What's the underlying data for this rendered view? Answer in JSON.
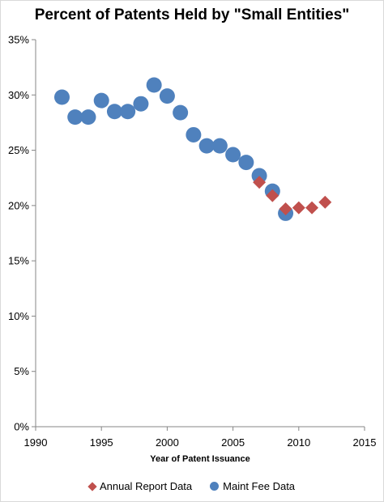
{
  "chart_data": {
    "type": "scatter",
    "title": "Percent of Patents Held by \"Small Entities\"",
    "xlabel": "Year of Patent Issuance",
    "ylabel": "",
    "xlim": [
      1990,
      2015
    ],
    "ylim": [
      0,
      35
    ],
    "x_ticks": [
      "1990",
      "1995",
      "2000",
      "2005",
      "2010",
      "2015"
    ],
    "y_ticks": [
      "0%",
      "5%",
      "10%",
      "15%",
      "20%",
      "25%",
      "30%",
      "35%"
    ],
    "grid": false,
    "legend_position": "bottom",
    "series": [
      {
        "name": "Annual Report Data",
        "marker": "diamond",
        "color": "#C0504D",
        "x": [
          2007,
          2008,
          2009,
          2010,
          2011,
          2012
        ],
        "y": [
          22.1,
          20.9,
          19.7,
          19.8,
          19.8,
          20.3
        ]
      },
      {
        "name": "Maint Fee Data",
        "marker": "circle",
        "color": "#4F81BD",
        "x": [
          1992,
          1993,
          1994,
          1995,
          1996,
          1997,
          1998,
          1999,
          2000,
          2001,
          2002,
          2003,
          2004,
          2005,
          2006,
          2007,
          2008,
          2009
        ],
        "y": [
          29.8,
          28.0,
          28.0,
          29.5,
          28.5,
          28.5,
          29.2,
          30.9,
          29.9,
          28.4,
          26.4,
          25.4,
          25.4,
          24.6,
          23.9,
          22.7,
          21.3,
          19.3
        ]
      }
    ]
  }
}
